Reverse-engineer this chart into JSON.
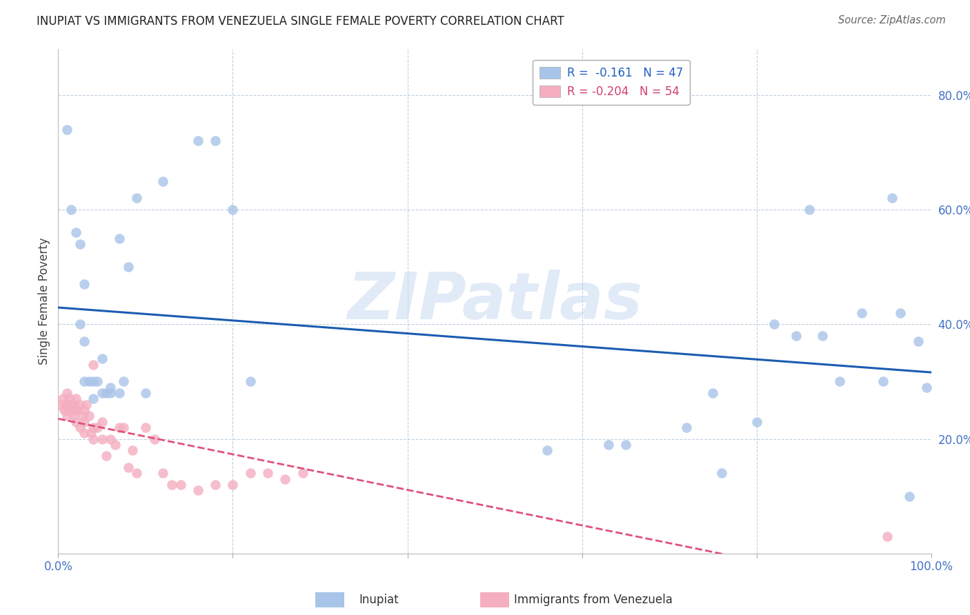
{
  "title": "INUPIAT VS IMMIGRANTS FROM VENEZUELA SINGLE FEMALE POVERTY CORRELATION CHART",
  "source": "Source: ZipAtlas.com",
  "ylabel": "Single Female Poverty",
  "yticks": [
    0.0,
    0.2,
    0.4,
    0.6,
    0.8
  ],
  "ytick_labels": [
    "",
    "20.0%",
    "40.0%",
    "60.0%",
    "80.0%"
  ],
  "xlim": [
    0.0,
    1.0
  ],
  "ylim": [
    0.0,
    0.88
  ],
  "watermark": "ZIPatlas",
  "legend_label1": "Inupiat",
  "legend_label2": "Immigrants from Venezuela",
  "blue_color": "#a8c4e8",
  "pink_color": "#f4aec0",
  "blue_line_color": "#1a5cb0",
  "pink_line_color": "#e0507a",
  "inupiat_x": [
    0.01,
    0.015,
    0.02,
    0.025,
    0.025,
    0.03,
    0.03,
    0.03,
    0.035,
    0.04,
    0.04,
    0.045,
    0.05,
    0.05,
    0.055,
    0.06,
    0.06,
    0.07,
    0.07,
    0.075,
    0.08,
    0.09,
    0.1,
    0.12,
    0.16,
    0.18,
    0.2,
    0.22,
    0.56,
    0.63,
    0.65,
    0.72,
    0.75,
    0.76,
    0.8,
    0.82,
    0.845,
    0.86,
    0.875,
    0.895,
    0.92,
    0.945,
    0.955,
    0.965,
    0.975,
    0.985,
    0.995
  ],
  "inupiat_y": [
    0.74,
    0.6,
    0.56,
    0.54,
    0.4,
    0.47,
    0.37,
    0.3,
    0.3,
    0.3,
    0.27,
    0.3,
    0.34,
    0.28,
    0.28,
    0.28,
    0.29,
    0.28,
    0.55,
    0.3,
    0.5,
    0.62,
    0.28,
    0.65,
    0.72,
    0.72,
    0.6,
    0.3,
    0.18,
    0.19,
    0.19,
    0.22,
    0.28,
    0.14,
    0.23,
    0.4,
    0.38,
    0.6,
    0.38,
    0.3,
    0.42,
    0.3,
    0.62,
    0.42,
    0.1,
    0.37,
    0.29
  ],
  "venezuela_x": [
    0.002,
    0.005,
    0.007,
    0.008,
    0.009,
    0.01,
    0.01,
    0.01,
    0.012,
    0.013,
    0.015,
    0.015,
    0.018,
    0.018,
    0.02,
    0.02,
    0.02,
    0.022,
    0.025,
    0.025,
    0.028,
    0.03,
    0.03,
    0.03,
    0.032,
    0.035,
    0.038,
    0.04,
    0.04,
    0.04,
    0.045,
    0.05,
    0.05,
    0.055,
    0.06,
    0.065,
    0.07,
    0.075,
    0.08,
    0.085,
    0.09,
    0.1,
    0.11,
    0.12,
    0.13,
    0.14,
    0.16,
    0.18,
    0.2,
    0.22,
    0.24,
    0.26,
    0.28,
    0.95
  ],
  "venezuela_y": [
    0.26,
    0.27,
    0.25,
    0.26,
    0.25,
    0.26,
    0.24,
    0.28,
    0.25,
    0.27,
    0.26,
    0.25,
    0.24,
    0.26,
    0.27,
    0.25,
    0.23,
    0.25,
    0.26,
    0.22,
    0.24,
    0.25,
    0.23,
    0.21,
    0.26,
    0.24,
    0.21,
    0.22,
    0.2,
    0.33,
    0.22,
    0.2,
    0.23,
    0.17,
    0.2,
    0.19,
    0.22,
    0.22,
    0.15,
    0.18,
    0.14,
    0.22,
    0.2,
    0.14,
    0.12,
    0.12,
    0.11,
    0.12,
    0.12,
    0.14,
    0.14,
    0.13,
    0.14,
    0.03
  ]
}
